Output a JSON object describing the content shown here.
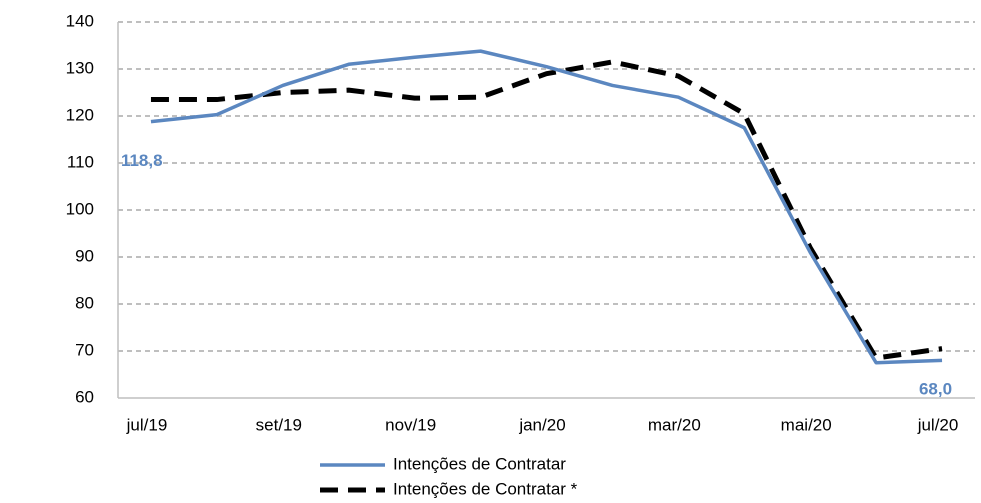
{
  "chart_data": {
    "type": "line",
    "categories": [
      "jul/19",
      null,
      "set/19",
      null,
      "nov/19",
      null,
      "jan/20",
      null,
      "mar/20",
      null,
      "mai/20",
      null,
      "jul/20"
    ],
    "series": [
      {
        "name": "Intenções de Contratar",
        "color": "#5b87c0",
        "style": "solid",
        "values": [
          118.8,
          120.3,
          126.5,
          131.0,
          132.5,
          133.8,
          130.5,
          126.5,
          124.0,
          117.5,
          91.0,
          67.5,
          68.0
        ],
        "value_labels": [
          "118,8",
          null,
          null,
          null,
          null,
          null,
          null,
          null,
          null,
          null,
          null,
          null,
          "68,0"
        ]
      },
      {
        "name": "Intenções de Contratar *",
        "color": "#000000",
        "style": "dashed",
        "values": [
          123.5,
          123.5,
          125.0,
          125.5,
          123.8,
          124.0,
          129.0,
          131.5,
          128.5,
          120.5,
          92.0,
          68.5,
          70.5
        ]
      }
    ],
    "ylim": [
      60,
      140
    ],
    "yticks": [
      60,
      70,
      80,
      90,
      100,
      110,
      120,
      130,
      140
    ],
    "grid": true
  }
}
